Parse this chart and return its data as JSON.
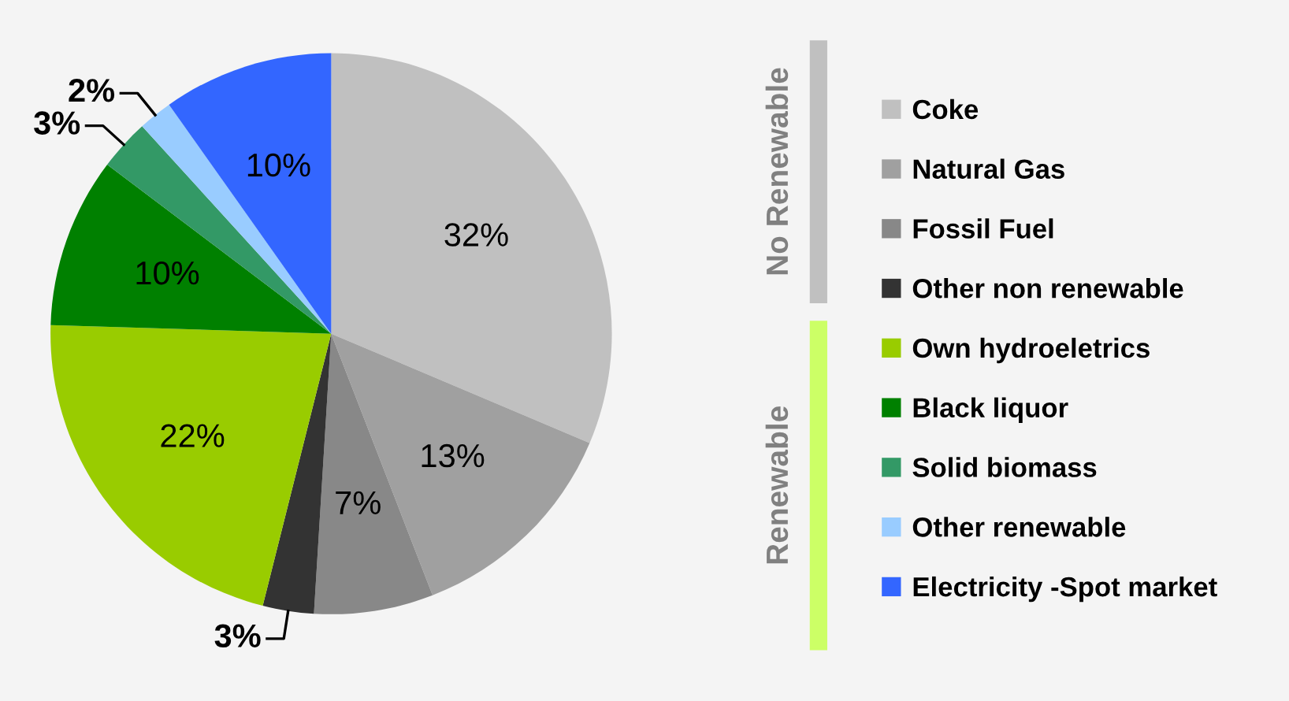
{
  "chart_data": {
    "type": "pie",
    "categories": [
      "Coke",
      "Natural Gas",
      "Fossil Fuel",
      "Other non renewable",
      "Own hydroeletrics",
      "Black liquor",
      "Solid biomass",
      "Other renewable",
      "Electricity -Spot market"
    ],
    "values": [
      32,
      13,
      7,
      3,
      22,
      10,
      3,
      2,
      10
    ],
    "colors": [
      "#c0c0c0",
      "#a0a0a0",
      "#888888",
      "#333333",
      "#99cc00",
      "#008000",
      "#339966",
      "#99ccff",
      "#3366ff"
    ],
    "value_labels": [
      "32%",
      "13%",
      "7%",
      "3%",
      "22%",
      "10%",
      "3%",
      "2%",
      "10%"
    ],
    "legend": "right",
    "annotations": [
      "No Renewable",
      "Renewable"
    ]
  }
}
